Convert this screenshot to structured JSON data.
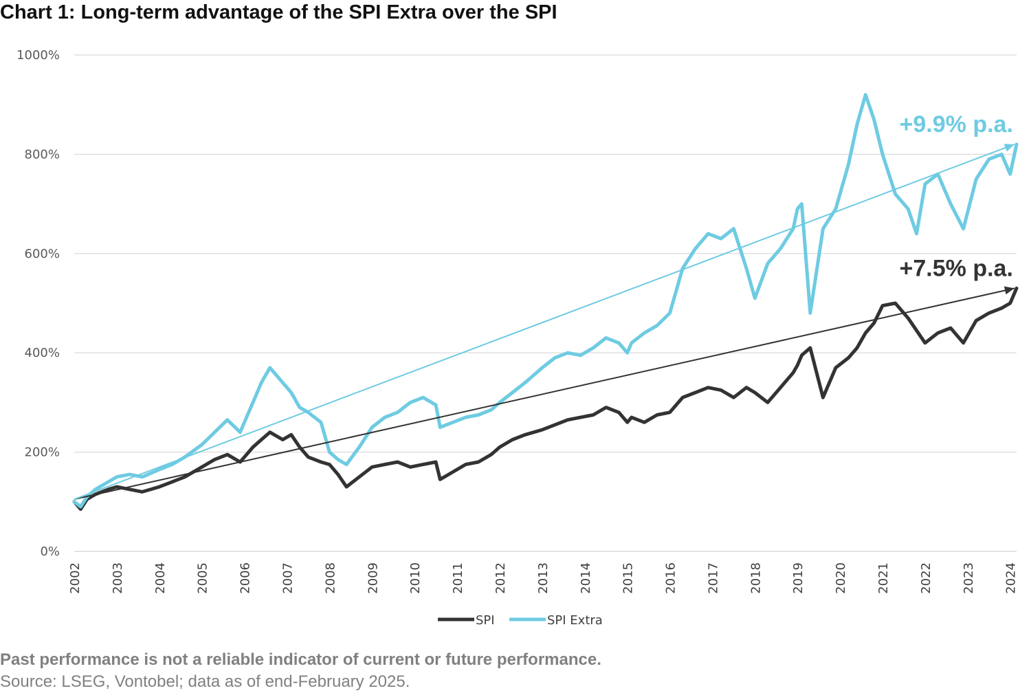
{
  "title": "Chart 1: Long-term advantage of the SPI Extra over the SPI",
  "footer": {
    "disclaimer": "Past performance is not a reliable indicator of current or future performance.",
    "source": "Source: LSEG, Vontobel; data as of end-February 2025."
  },
  "colors": {
    "spi": "#333333",
    "spi_extra": "#6ecbe2",
    "grid": "#d9d9d9"
  },
  "chart_data": {
    "type": "line",
    "title": "Chart 1: Long-term advantage of the SPI Extra over the SPI",
    "ylim": [
      0,
      1000
    ],
    "xlim": [
      2002,
      2024.15
    ],
    "y_ticks": [
      0,
      200,
      400,
      600,
      800,
      1000
    ],
    "y_tick_labels": [
      "0%",
      "200%",
      "400%",
      "600%",
      "800%",
      "1000%"
    ],
    "x_ticks": [
      "2002",
      "2003",
      "2004",
      "2005",
      "2006",
      "2007",
      "2008",
      "2009",
      "2010",
      "2011",
      "2012",
      "2013",
      "2014",
      "2015",
      "2016",
      "2017",
      "2018",
      "2019",
      "2020",
      "2021",
      "2022",
      "2023",
      "2024"
    ],
    "grid": true,
    "legend_position": "bottom",
    "series": [
      {
        "name": "SPI",
        "color": "#333333",
        "x": [
          2002.0,
          2002.15,
          2002.3,
          2002.5,
          2002.8,
          2003.0,
          2003.3,
          2003.6,
          2004.0,
          2004.3,
          2004.6,
          2005.0,
          2005.3,
          2005.6,
          2005.9,
          2006.2,
          2006.4,
          2006.6,
          2006.9,
          2007.1,
          2007.3,
          2007.5,
          2007.8,
          2008.0,
          2008.2,
          2008.4,
          2008.7,
          2009.0,
          2009.3,
          2009.6,
          2009.9,
          2010.2,
          2010.5,
          2010.6,
          2010.9,
          2011.2,
          2011.5,
          2011.8,
          2012.0,
          2012.3,
          2012.6,
          2013.0,
          2013.3,
          2013.6,
          2013.9,
          2014.2,
          2014.5,
          2014.8,
          2015.0,
          2015.1,
          2015.4,
          2015.7,
          2016.0,
          2016.3,
          2016.6,
          2016.9,
          2017.2,
          2017.5,
          2017.8,
          2018.0,
          2018.3,
          2018.6,
          2018.9,
          2019.0,
          2019.1,
          2019.3,
          2019.6,
          2019.9,
          2020.2,
          2020.4,
          2020.6,
          2020.8,
          2021.0,
          2021.3,
          2021.6,
          2021.8,
          2022.0,
          2022.3,
          2022.6,
          2022.9,
          2023.2,
          2023.5,
          2023.8,
          2024.0,
          2024.15
        ],
        "y": [
          100,
          85,
          105,
          115,
          125,
          130,
          125,
          120,
          130,
          140,
          150,
          170,
          185,
          195,
          180,
          210,
          225,
          240,
          225,
          235,
          210,
          190,
          180,
          175,
          155,
          130,
          150,
          170,
          175,
          180,
          170,
          175,
          180,
          145,
          160,
          175,
          180,
          195,
          210,
          225,
          235,
          245,
          255,
          265,
          270,
          275,
          290,
          280,
          260,
          270,
          260,
          275,
          280,
          310,
          320,
          330,
          325,
          310,
          330,
          320,
          300,
          330,
          360,
          375,
          395,
          410,
          310,
          370,
          390,
          410,
          440,
          460,
          495,
          500,
          470,
          445,
          420,
          440,
          450,
          420,
          465,
          480,
          490,
          500,
          530
        ]
      },
      {
        "name": "SPI Extra",
        "color": "#6ecbe2",
        "x": [
          2002.0,
          2002.15,
          2002.3,
          2002.5,
          2002.8,
          2003.0,
          2003.3,
          2003.6,
          2004.0,
          2004.3,
          2004.6,
          2005.0,
          2005.3,
          2005.6,
          2005.9,
          2006.2,
          2006.4,
          2006.6,
          2006.9,
          2007.1,
          2007.3,
          2007.5,
          2007.8,
          2008.0,
          2008.2,
          2008.4,
          2008.7,
          2009.0,
          2009.3,
          2009.6,
          2009.9,
          2010.2,
          2010.5,
          2010.6,
          2010.9,
          2011.2,
          2011.5,
          2011.8,
          2012.0,
          2012.3,
          2012.6,
          2013.0,
          2013.3,
          2013.6,
          2013.9,
          2014.2,
          2014.5,
          2014.8,
          2015.0,
          2015.1,
          2015.4,
          2015.7,
          2016.0,
          2016.3,
          2016.6,
          2016.9,
          2017.2,
          2017.5,
          2017.8,
          2018.0,
          2018.3,
          2018.6,
          2018.9,
          2019.0,
          2019.1,
          2019.3,
          2019.6,
          2019.9,
          2020.2,
          2020.4,
          2020.6,
          2020.8,
          2021.0,
          2021.3,
          2021.6,
          2021.8,
          2022.0,
          2022.3,
          2022.6,
          2022.9,
          2023.2,
          2023.5,
          2023.8,
          2024.0,
          2024.15
        ],
        "y": [
          100,
          90,
          110,
          125,
          140,
          150,
          155,
          150,
          165,
          175,
          190,
          215,
          240,
          265,
          240,
          300,
          340,
          370,
          340,
          320,
          290,
          280,
          260,
          200,
          185,
          175,
          210,
          250,
          270,
          280,
          300,
          310,
          295,
          250,
          260,
          270,
          275,
          285,
          300,
          320,
          340,
          370,
          390,
          400,
          395,
          410,
          430,
          420,
          400,
          420,
          440,
          455,
          480,
          570,
          610,
          640,
          630,
          650,
          570,
          510,
          580,
          610,
          650,
          690,
          700,
          480,
          650,
          690,
          780,
          860,
          920,
          870,
          800,
          720,
          690,
          640,
          740,
          760,
          700,
          650,
          750,
          790,
          800,
          760,
          820
        ]
      }
    ],
    "trend_lines": [
      {
        "series": "SPI",
        "label": "+7.5% p.a.",
        "start": [
          2002,
          105
        ],
        "end": [
          2024.1,
          530
        ],
        "color": "#333333"
      },
      {
        "series": "SPI Extra",
        "label": "+9.9% p.a.",
        "start": [
          2002,
          105
        ],
        "end": [
          2024.1,
          820
        ],
        "color": "#6ecbe2"
      }
    ]
  }
}
